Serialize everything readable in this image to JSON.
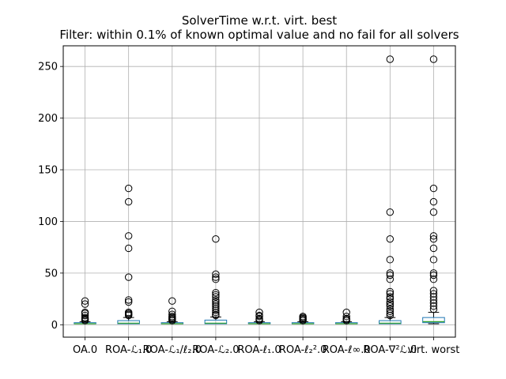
{
  "chart_data": {
    "type": "box",
    "title": "SolverTime w.r.t. virt. best",
    "subtitle": "Filter: within 0.1% of known optimal value and no fail for all solvers",
    "xlabel": "",
    "ylabel": "",
    "ylim": [
      -12,
      270
    ],
    "yticks": [
      0,
      50,
      100,
      150,
      200,
      250
    ],
    "grid": true,
    "colors": {
      "box": "#1f77b4",
      "median": "#2ca02c",
      "whisker": "#000000",
      "grid": "#b0b0b0"
    },
    "categories": [
      "OA.0",
      "ROA-ℒ₁.0",
      "ROA-ℒ₁/ℓ₂.0",
      "ROA-ℒ₂.0",
      "ROA-ℓ₁.0",
      "ROA-ℓ₂².0",
      "ROA-ℓ∞.0",
      "ROA-∇²ℒ.0",
      "virt. worst"
    ],
    "boxes": [
      {
        "q1": 1.0,
        "median": 1.0,
        "q3": 2.0,
        "whislo": 1.0,
        "whishi": 3.0,
        "fliers": [
          4,
          5,
          6,
          7,
          9,
          11,
          12,
          20,
          23
        ]
      },
      {
        "q1": 1.0,
        "median": 1.5,
        "q3": 4.0,
        "whislo": 1.0,
        "whishi": 7.0,
        "fliers": [
          9,
          10,
          11,
          12,
          22,
          24,
          46,
          74,
          86,
          119,
          132
        ]
      },
      {
        "q1": 1.0,
        "median": 1.0,
        "q3": 2.0,
        "whislo": 1.0,
        "whishi": 3.0,
        "fliers": [
          4,
          5,
          6,
          7,
          8,
          10,
          13,
          23
        ]
      },
      {
        "q1": 1.0,
        "median": 1.5,
        "q3": 4.5,
        "whislo": 1.0,
        "whishi": 7.5,
        "fliers": [
          9,
          10,
          12,
          14,
          16,
          18,
          20,
          22,
          24,
          27,
          29,
          31,
          44,
          46,
          49,
          83
        ]
      },
      {
        "q1": 1.0,
        "median": 1.0,
        "q3": 2.0,
        "whislo": 1.0,
        "whishi": 3.0,
        "fliers": [
          4,
          5,
          6,
          8,
          9,
          12
        ]
      },
      {
        "q1": 1.0,
        "median": 1.0,
        "q3": 2.0,
        "whislo": 1.0,
        "whishi": 3.0,
        "fliers": [
          4,
          5,
          6,
          7,
          8
        ]
      },
      {
        "q1": 1.0,
        "median": 1.0,
        "q3": 2.0,
        "whislo": 1.0,
        "whishi": 3.0,
        "fliers": [
          4,
          5,
          6,
          8,
          12
        ]
      },
      {
        "q1": 1.0,
        "median": 1.5,
        "q3": 4.0,
        "whislo": 1.0,
        "whishi": 7.0,
        "fliers": [
          9,
          11,
          13,
          15,
          18,
          20,
          22,
          25,
          27,
          30,
          32,
          44,
          48,
          50,
          63,
          83,
          109,
          257
        ]
      },
      {
        "q1": 2.0,
        "median": 3.0,
        "q3": 7.0,
        "whislo": 1.0,
        "whishi": 12.0,
        "fliers": [
          15,
          18,
          21,
          24,
          27,
          30,
          33,
          44,
          48,
          50,
          63,
          74,
          83,
          86,
          109,
          119,
          132,
          257
        ]
      }
    ]
  }
}
